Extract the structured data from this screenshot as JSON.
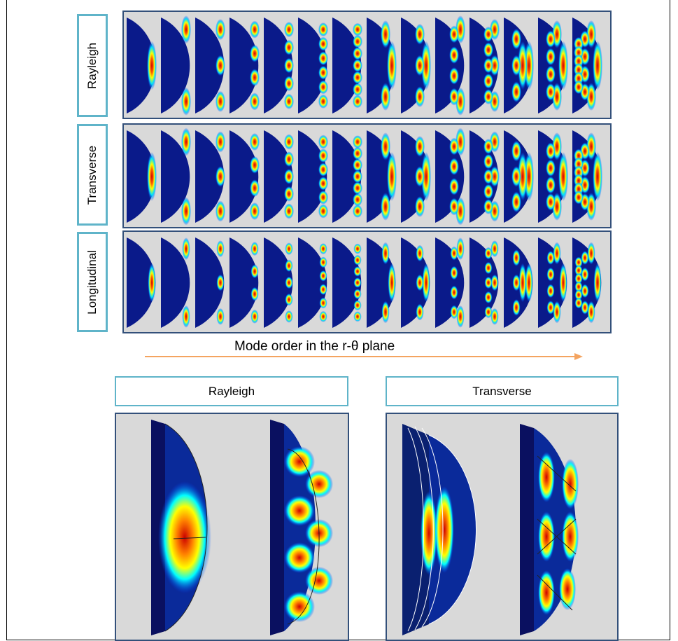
{
  "rows": [
    {
      "label": "Rayleigh"
    },
    {
      "label": "Transverse"
    },
    {
      "label": "Longitudinal"
    }
  ],
  "caption": "Mode order in the r-θ plane",
  "bottom_panels": [
    {
      "label": "Rayleigh"
    },
    {
      "label": "Transverse"
    }
  ],
  "colors": {
    "label_border": "#5fb4c9",
    "panel_border": "#33507a",
    "panel_bg": "#d9d9d9",
    "arrow": "#f4a460",
    "colormap": [
      "#00008f",
      "#0040ff",
      "#00ffff",
      "#ffff00",
      "#ff8000",
      "#cc0000"
    ]
  }
}
